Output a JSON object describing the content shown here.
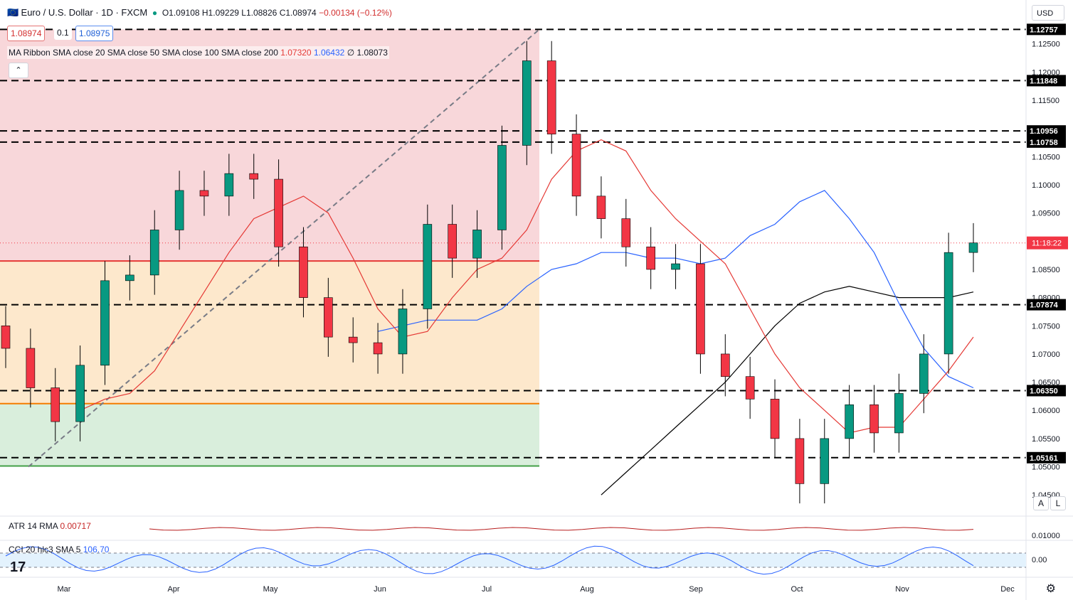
{
  "header": {
    "symbol": "Euro / U.S. Dollar · 1D · FXCM",
    "open": "O1.09108",
    "high": "H1.09229",
    "low": "L1.08826",
    "close": "C1.08974",
    "change": "−0.00134 (−0.12%)",
    "bid": "1.08974",
    "spread": "0.1",
    "ask": "1.08975",
    "currency": "USD"
  },
  "ma_ribbon": {
    "label": "MA Ribbon SMA close 20 SMA close 50 SMA close 100 SMA close 200",
    "v20": "1.07320",
    "v50": "1.06432",
    "v100": "∅",
    "v200": "1.08073"
  },
  "indicators": {
    "atr_label": "ATR 14 RMA",
    "atr_value": "0.00717",
    "cci_label": "CCI 20 hlc3 SMA 5",
    "cci_value": "106.70"
  },
  "buttons": {
    "collapse": "⌃",
    "auto": "A",
    "log": "L"
  },
  "price_axis": {
    "ticks": [
      "1.12500",
      "1.12000",
      "1.11500",
      "1.11000",
      "1.10500",
      "1.10000",
      "1.09500",
      "1.09000",
      "1.08500",
      "1.08000",
      "1.07500",
      "1.07000",
      "1.06500",
      "1.06000",
      "1.05500",
      "1.05000",
      "1.04500"
    ],
    "highlighted": [
      "1.12757",
      "1.11848",
      "1.10956",
      "1.10758",
      "1.07874",
      "1.06350",
      "1.05161"
    ],
    "countdown": "11:18:22",
    "atr_tick": "0.01000",
    "cci_tick": "0.00"
  },
  "time_axis": [
    "Mar",
    "Apr",
    "May",
    "Jun",
    "Jul",
    "Aug",
    "Sep",
    "Oct",
    "Nov",
    "Dec"
  ],
  "colors": {
    "up": "#089981",
    "down": "#f23645",
    "fib_red": "#f8d7da",
    "fib_orange": "#fde8cc",
    "fib_green": "#d9eedc",
    "sma20": "#e53935",
    "sma50": "#2962ff",
    "sma200": "#000000"
  },
  "chart_data": {
    "type": "candlestick",
    "x": [
      "Feb-20",
      "Feb-27",
      "Mar-06",
      "Mar-13",
      "Mar-20",
      "Mar-27",
      "Apr-03",
      "Apr-10",
      "Apr-17",
      "Apr-24",
      "May-01",
      "May-08",
      "May-15",
      "May-22",
      "May-29",
      "Jun-05",
      "Jun-12",
      "Jun-19",
      "Jun-26",
      "Jul-03",
      "Jul-10",
      "Jul-17",
      "Jul-24",
      "Jul-31",
      "Aug-07",
      "Aug-14",
      "Aug-21",
      "Aug-28",
      "Sep-04",
      "Sep-11",
      "Sep-18",
      "Sep-25",
      "Oct-02",
      "Oct-09",
      "Oct-16",
      "Oct-23",
      "Oct-30",
      "Nov-06",
      "Nov-13",
      "Nov-20"
    ],
    "close": [
      1.071,
      1.064,
      1.058,
      1.068,
      1.083,
      1.084,
      1.092,
      1.099,
      1.098,
      1.102,
      1.101,
      1.089,
      1.08,
      1.073,
      1.072,
      1.07,
      1.078,
      1.093,
      1.087,
      1.092,
      1.107,
      1.122,
      1.109,
      1.098,
      1.094,
      1.089,
      1.085,
      1.086,
      1.07,
      1.066,
      1.062,
      1.055,
      1.047,
      1.055,
      1.061,
      1.056,
      1.063,
      1.07,
      1.088,
      1.0897
    ],
    "sma20": [
      1.06,
      1.062,
      1.063,
      1.067,
      1.074,
      1.081,
      1.088,
      1.094,
      1.096,
      1.098,
      1.095,
      1.087,
      1.078,
      1.073,
      1.074,
      1.08,
      1.085,
      1.087,
      1.092,
      1.101,
      1.106,
      1.108,
      1.106,
      1.099,
      1.094,
      1.09,
      1.086,
      1.078,
      1.07,
      1.064,
      1.06,
      1.056,
      1.057,
      1.057,
      1.062,
      1.067,
      1.073
    ],
    "sma50": [
      1.074,
      1.075,
      1.076,
      1.076,
      1.076,
      1.078,
      1.082,
      1.085,
      1.086,
      1.088,
      1.088,
      1.087,
      1.087,
      1.086,
      1.087,
      1.091,
      1.093,
      1.097,
      1.099,
      1.094,
      1.088,
      1.079,
      1.071,
      1.066,
      1.064
    ],
    "sma200": [
      1.045,
      1.049,
      1.053,
      1.057,
      1.061,
      1.065,
      1.07,
      1.075,
      1.079,
      1.081,
      1.082,
      1.081,
      1.08,
      1.08,
      1.08,
      1.081
    ],
    "fib_levels": [
      1.12757,
      1.0865,
      1.0612,
      1.05
    ],
    "horizontal_levels": [
      1.12757,
      1.11848,
      1.10956,
      1.10758,
      1.07874,
      1.0635,
      1.05161
    ],
    "ylim": [
      1.042,
      1.129
    ],
    "atr_last": 0.00717,
    "cci_last": 106.7
  }
}
